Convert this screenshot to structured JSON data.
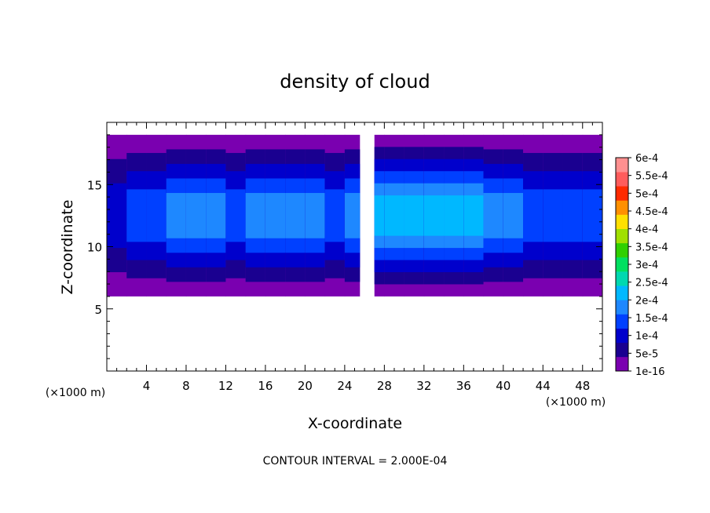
{
  "chart_data": {
    "type": "heatmap",
    "title": "density of cloud",
    "xlabel": "X-coordinate",
    "ylabel": "Z-coordinate",
    "x_unit_label": "(×1000 m)",
    "x_unit_label_right": "(×1000 m)",
    "footer": "CONTOUR INTERVAL = 2.000E-04",
    "xlim": [
      0,
      50
    ],
    "ylim": [
      0,
      20
    ],
    "x_ticks": [
      4,
      8,
      12,
      16,
      20,
      24,
      28,
      32,
      36,
      40,
      44,
      48
    ],
    "x_tick_labels": [
      "4",
      "8",
      "12",
      "16",
      "20",
      "24",
      "28",
      "32",
      "36",
      "40",
      "44",
      "48"
    ],
    "y_ticks": [
      5,
      10,
      15
    ],
    "y_tick_labels": [
      "5",
      "10",
      "15"
    ],
    "colorbar": {
      "labels": [
        "1e-16",
        "5e-5",
        "1e-4",
        "1.5e-4",
        "2e-4",
        "2.5e-4",
        "3e-4",
        "3.5e-4",
        "4e-4",
        "4.5e-4",
        "5e-4",
        "5.5e-4",
        "6e-4"
      ],
      "colors": [
        "#7a00b0",
        "#1a0090",
        "#0000cc",
        "#0040ff",
        "#1e88ff",
        "#00b8ff",
        "#00d8b0",
        "#00e060",
        "#30d000",
        "#a0e000",
        "#ffe000",
        "#ff9000",
        "#ff2a00",
        "#ff5c5c",
        "#ff9090"
      ]
    },
    "cloud_layer": {
      "base_z": 6,
      "top_z": 19,
      "gap_x": [
        25.5,
        27
      ]
    },
    "field": {
      "x": [
        0,
        2,
        4,
        6,
        8,
        10,
        12,
        14,
        16,
        18,
        20,
        22,
        24,
        26,
        28,
        30,
        32,
        34,
        36,
        38,
        40,
        42,
        44,
        46,
        48,
        50
      ],
      "core_level_index": [
        2,
        2,
        3,
        3,
        4,
        4,
        3,
        3,
        4,
        4,
        4,
        3,
        3,
        4,
        5,
        5,
        5,
        5,
        5,
        4,
        4,
        3,
        3,
        3,
        3,
        3
      ]
    }
  }
}
